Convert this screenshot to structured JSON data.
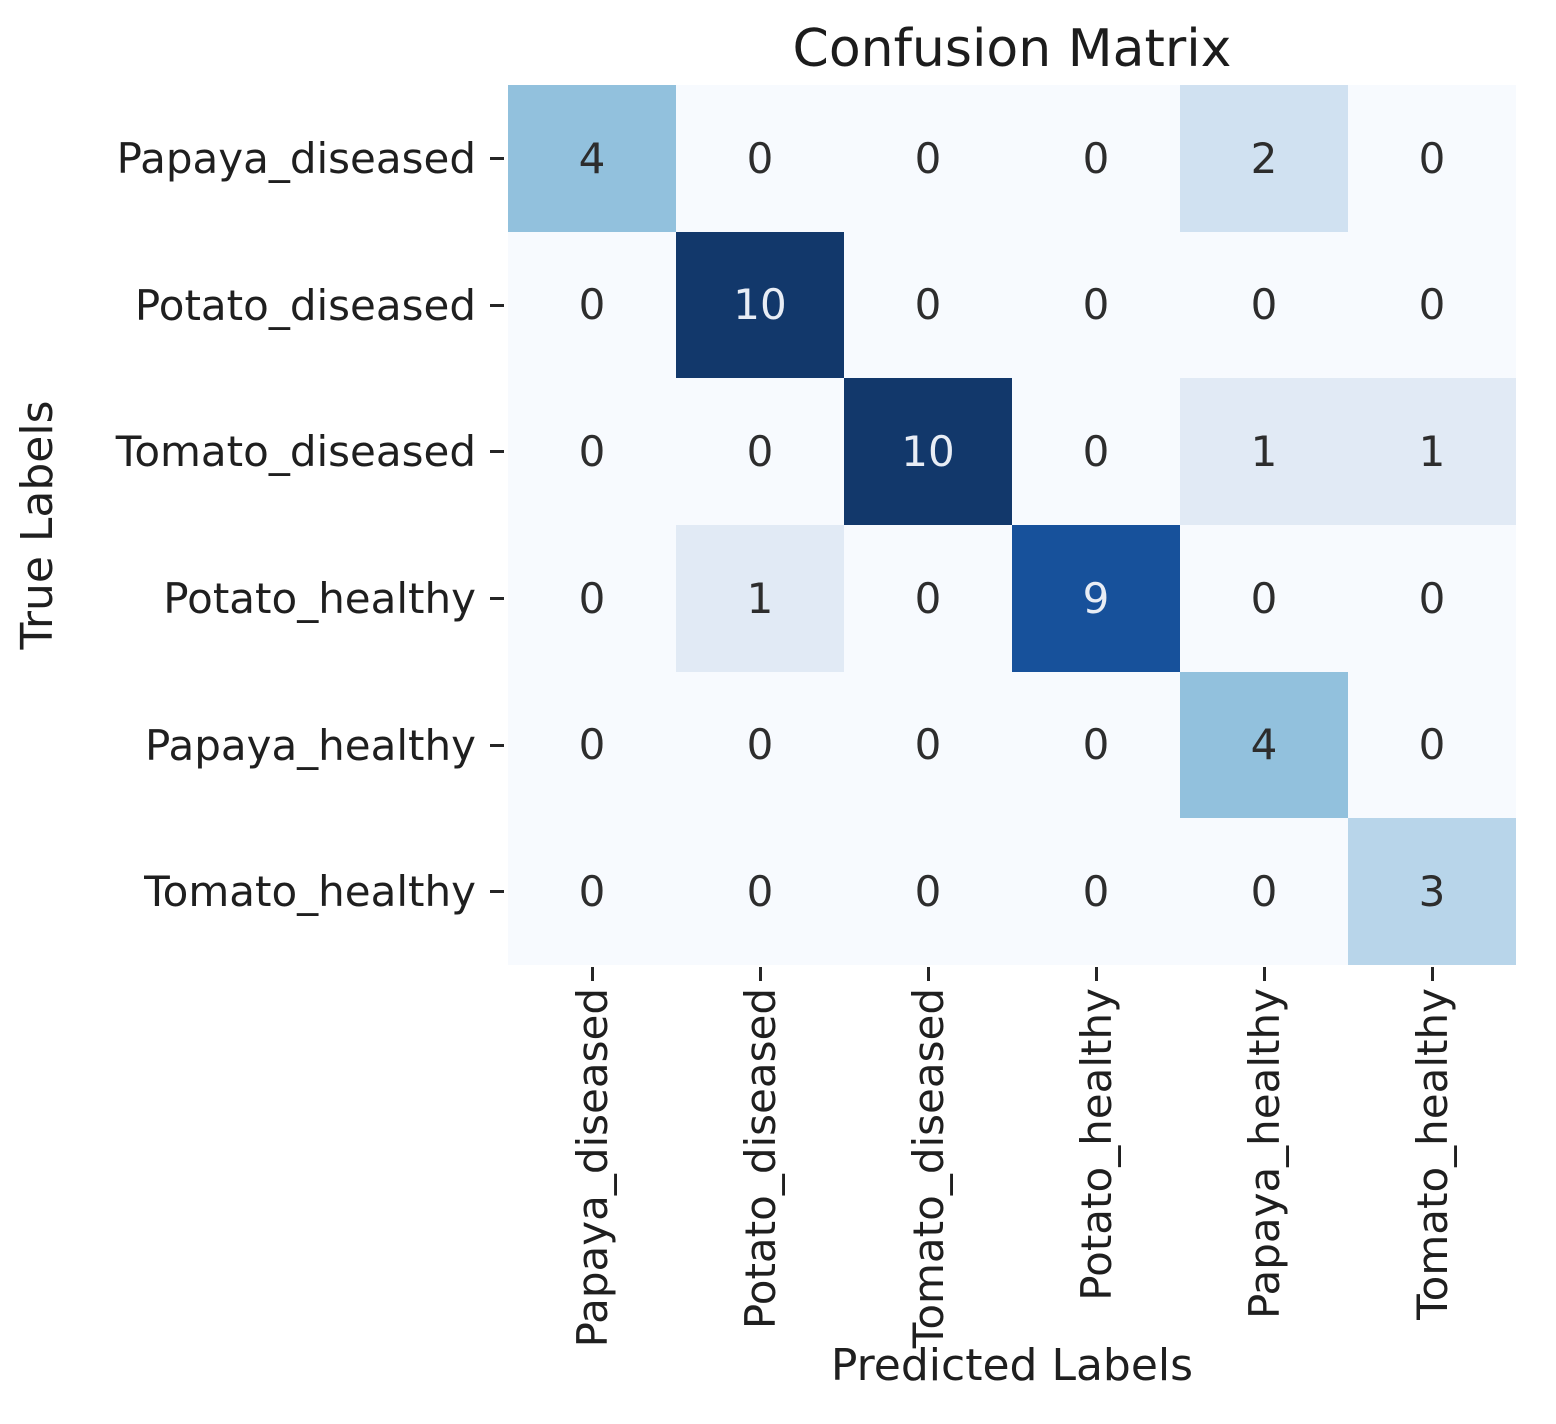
{
  "chart_data": {
    "type": "heatmap",
    "title": "Confusion Matrix",
    "xlabel": "Predicted Labels",
    "ylabel": "True Labels",
    "x_tick_labels": [
      "Papaya_diseased",
      "Potato_diseased",
      "Tomato_diseased",
      "Potato_healthy",
      "Papaya_healthy",
      "Tomato_healthy"
    ],
    "y_tick_labels": [
      "Papaya_diseased",
      "Potato_diseased",
      "Tomato_diseased",
      "Potato_healthy",
      "Papaya_healthy",
      "Tomato_healthy"
    ],
    "matrix": [
      [
        4,
        0,
        0,
        0,
        2,
        0
      ],
      [
        0,
        10,
        0,
        0,
        0,
        0
      ],
      [
        0,
        0,
        10,
        0,
        1,
        1
      ],
      [
        0,
        1,
        0,
        9,
        0,
        0
      ],
      [
        0,
        0,
        0,
        0,
        4,
        0
      ],
      [
        0,
        0,
        0,
        0,
        0,
        3
      ]
    ],
    "colormap": "Blues",
    "vmin": 0,
    "vmax": 10,
    "value_colors": {
      "0": "#f7fafe",
      "1": "#e1eaf5",
      "2": "#d0e1f1",
      "3": "#b8d5ea",
      "4": "#92c1dd",
      "9": "#17519b",
      "10": "#12386b"
    },
    "annotation_text_dark": "#2d2d2d",
    "annotation_text_light": "#e8edf5",
    "light_text_min_value": 6,
    "grid": false,
    "legend": "none",
    "x_tick_rotation_deg": 90,
    "y_tick_rotation_deg": 0
  }
}
